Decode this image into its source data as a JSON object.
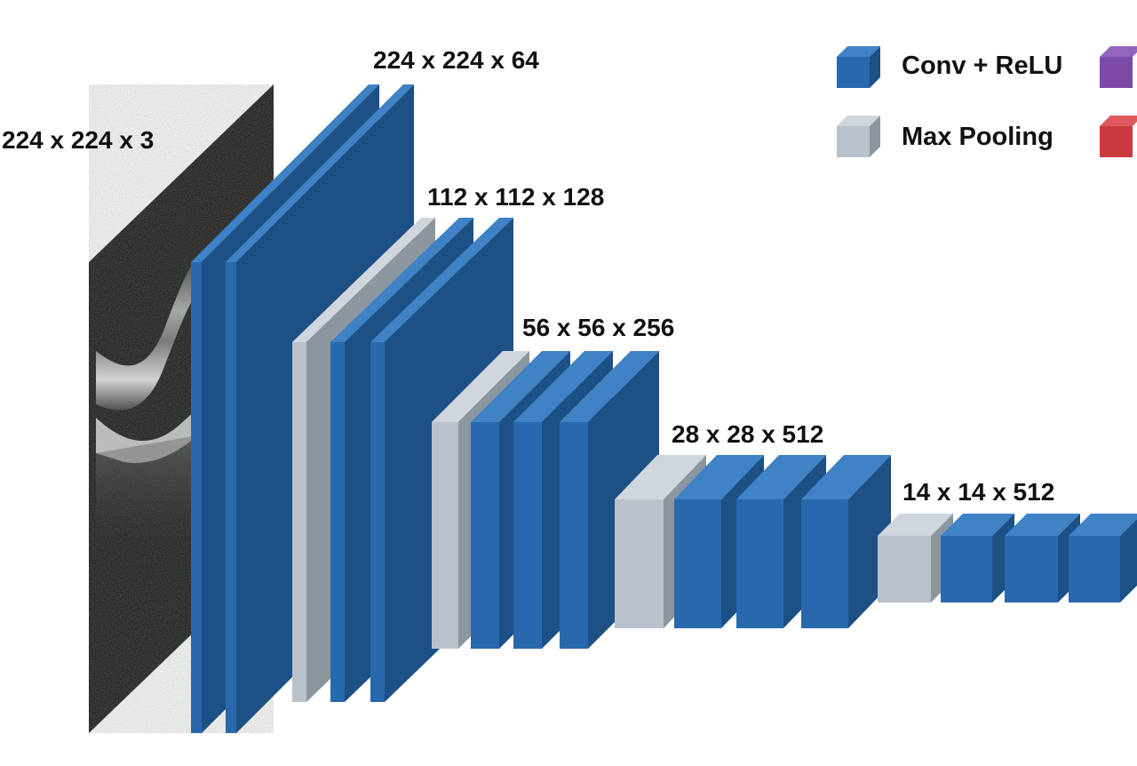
{
  "labels": {
    "input": "224 x 224 x 3",
    "block1": "224 x 224 x 64",
    "block2": "112 x 112 x 128",
    "block3": "56 x 56 x 256",
    "block4": "28 x 28 x 512",
    "block5": "14 x 14 x 512"
  },
  "legend": {
    "conv": "Conv + ReLU",
    "pool": "Max Pooling"
  },
  "colors": {
    "conv_front": "#2869ad",
    "conv_side": "#1d5085",
    "conv_top": "#3f82c6",
    "pool_front": "#b9c2cb",
    "pool_side": "#8c969f",
    "pool_top": "#cfd6dd",
    "legend_purple": "#7a4aa6",
    "legend_red": "#c93a3e"
  }
}
